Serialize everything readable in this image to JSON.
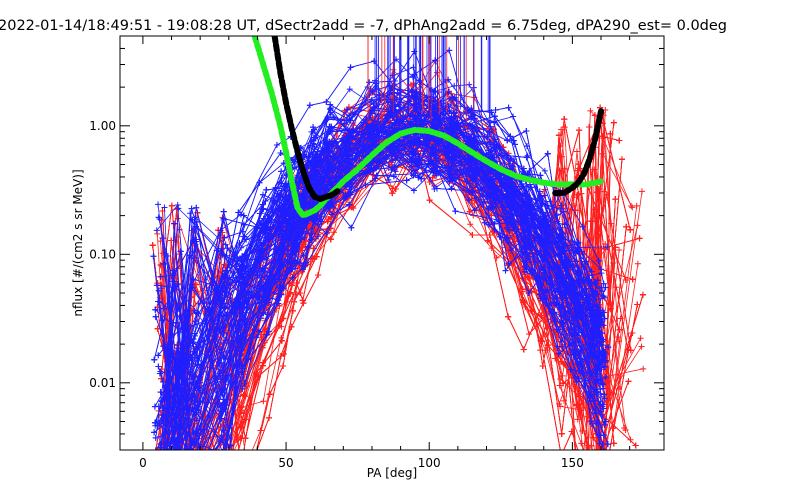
{
  "chart_data": {
    "type": "line",
    "title": "2022-01-14/18:49:51 - 19:08:28 UT, dSectr2add = -7, dPhAng2add = 6.75deg, dPA290_est=   0.0deg",
    "xlabel": "PA [deg]",
    "ylabel": "nflux [#/(cm2 s sr MeV)]",
    "xlim": [
      -8,
      182
    ],
    "ylim": [
      0.003,
      5.0
    ],
    "yscale": "log",
    "x_ticks": [
      0,
      50,
      100,
      150
    ],
    "x_tick_labels": [
      "0",
      "50",
      "100",
      "150"
    ],
    "y_ticks": [
      0.01,
      0.1,
      1.0
    ],
    "y_tick_labels": [
      "0.01",
      "0.10",
      "1.00"
    ],
    "grid": false,
    "colors": {
      "blue_traces": "#1f1fff",
      "red_traces": "#ff1f1f",
      "green_fit": "#22ee22",
      "black_fit": "#000000",
      "axes": "#000000"
    },
    "series": [
      {
        "color": "green",
        "style": "thick-dashed",
        "x": [
          39,
          42,
          45,
          48,
          50,
          52,
          54,
          56,
          58,
          60,
          62,
          64,
          66,
          70,
          75,
          80,
          85,
          90,
          95,
          100,
          105,
          110,
          115,
          120,
          125,
          130,
          135,
          140,
          145,
          150,
          155,
          158,
          160
        ],
        "y": [
          5.0,
          3.0,
          1.8,
          1.0,
          0.62,
          0.37,
          0.23,
          0.2,
          0.21,
          0.22,
          0.24,
          0.27,
          0.3,
          0.37,
          0.46,
          0.59,
          0.74,
          0.87,
          0.93,
          0.91,
          0.84,
          0.73,
          0.62,
          0.53,
          0.46,
          0.41,
          0.38,
          0.36,
          0.35,
          0.35,
          0.35,
          0.36,
          0.37
        ]
      },
      {
        "color": "black",
        "style": "thick-dashed",
        "x": [
          46,
          48,
          50,
          52,
          54,
          56,
          58,
          60,
          62,
          64,
          66,
          68
        ],
        "y": [
          5.0,
          2.6,
          1.5,
          0.95,
          0.63,
          0.44,
          0.33,
          0.28,
          0.27,
          0.28,
          0.29,
          0.31
        ]
      },
      {
        "color": "black",
        "style": "thick-dashed",
        "x": [
          144,
          147,
          150,
          152,
          154,
          156,
          158,
          160
        ],
        "y": [
          0.3,
          0.3,
          0.33,
          0.36,
          0.42,
          0.55,
          0.8,
          1.3
        ]
      }
    ]
  }
}
